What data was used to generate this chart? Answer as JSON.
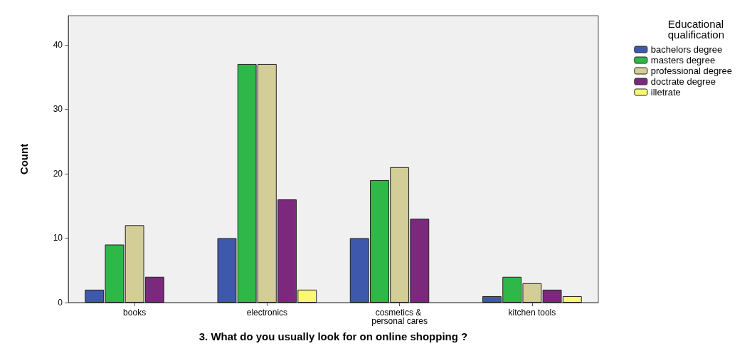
{
  "chart_data": {
    "type": "bar",
    "xlabel": "3. What do you usually look for on online shopping ?",
    "ylabel": "Count",
    "legend_title": "Educational qualification",
    "legend": "right",
    "categories": [
      "books",
      "electronics",
      "cosmetics & personal cares",
      "kitchen tools"
    ],
    "series": [
      {
        "name": "bachelors degree",
        "color": "#3e58ac",
        "values": [
          2,
          10,
          10,
          1
        ]
      },
      {
        "name": "masters degree",
        "color": "#2eb848",
        "values": [
          9,
          37,
          19,
          4
        ]
      },
      {
        "name": "professional degree",
        "color": "#d3ce97",
        "values": [
          12,
          37,
          21,
          3
        ]
      },
      {
        "name": "doctrate degree",
        "color": "#7c287d",
        "values": [
          4,
          16,
          13,
          2
        ]
      },
      {
        "name": "illetrate",
        "color": "#fbf873",
        "values": [
          null,
          2,
          null,
          1
        ]
      }
    ],
    "ylim": [
      0,
      44.5
    ],
    "yticks": [
      0,
      10,
      20,
      30,
      40
    ],
    "grid": false
  }
}
